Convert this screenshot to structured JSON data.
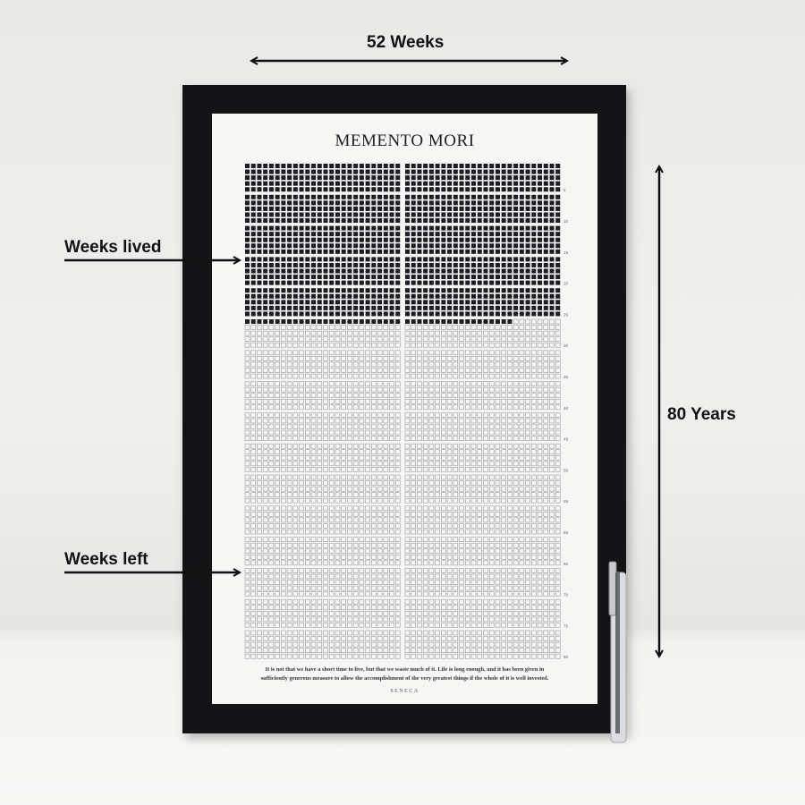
{
  "annotations": {
    "top": "52 Weeks",
    "right": "80 Years",
    "lived": "Weeks lived",
    "left": "Weeks left"
  },
  "poster": {
    "title": "MEMENTO MORI",
    "quote_line1": "It is not that we have a short time to live, but that we waste much of it. Life is long enough, and it has been given in",
    "quote_line2": "sufficiently generous measure to allow the accomplishment of the very greatest things if the whole of it is well invested.",
    "author": "SENECA"
  },
  "grid": {
    "weeks_per_year": 52,
    "years": 80,
    "weeks_lived": 1344,
    "label_every": 5,
    "filled_color": "#1c1c22",
    "empty_color": "#9a9aa2"
  },
  "colors": {
    "frame": "#141416",
    "poster": "#f6f6f5",
    "arrow": "#111111"
  }
}
